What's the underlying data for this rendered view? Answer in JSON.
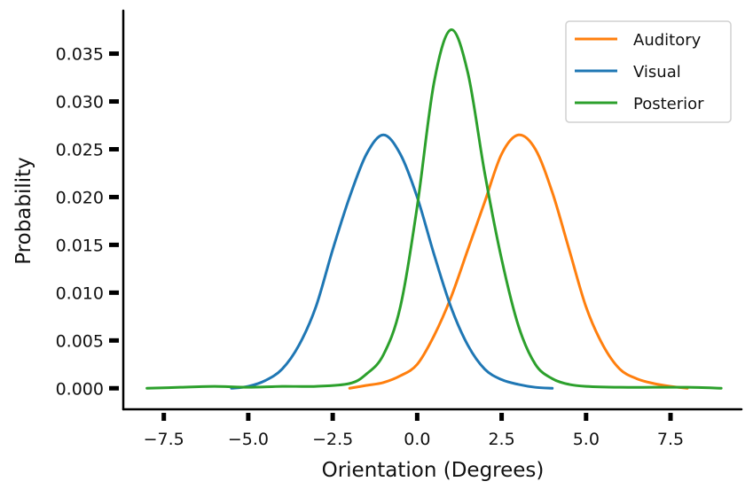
{
  "chart_data": {
    "type": "line",
    "xlabel": "Orientation (Degrees)",
    "ylabel": "Probability",
    "xlim": [
      -8.7,
      9.6
    ],
    "ylim": [
      -0.0022,
      0.0395
    ],
    "xticks": [
      {
        "value": -7.5,
        "label": "−7.5"
      },
      {
        "value": -5.0,
        "label": "−5.0"
      },
      {
        "value": -2.5,
        "label": "−2.5"
      },
      {
        "value": 0.0,
        "label": "0.0"
      },
      {
        "value": 2.5,
        "label": "2.5"
      },
      {
        "value": 5.0,
        "label": "5.0"
      },
      {
        "value": 7.5,
        "label": "7.5"
      }
    ],
    "yticks": [
      {
        "value": 0.0,
        "label": "0.000"
      },
      {
        "value": 0.005,
        "label": "0.005"
      },
      {
        "value": 0.01,
        "label": "0.010"
      },
      {
        "value": 0.015,
        "label": "0.015"
      },
      {
        "value": 0.02,
        "label": "0.020"
      },
      {
        "value": 0.025,
        "label": "0.025"
      },
      {
        "value": 0.03,
        "label": "0.030"
      },
      {
        "value": 0.035,
        "label": "0.035"
      }
    ],
    "grid": false,
    "legend_position": "top-right",
    "series": [
      {
        "name": "Auditory",
        "color": "#ff7f0e",
        "x": [
          -2.0,
          -1.5,
          -1.0,
          -0.5,
          0.0,
          0.5,
          1.0,
          1.5,
          2.0,
          2.5,
          3.0,
          3.5,
          4.0,
          4.5,
          5.0,
          5.5,
          6.0,
          6.5,
          7.0,
          7.5,
          8.0
        ],
        "y": [
          0.0,
          0.0003,
          0.0006,
          0.0013,
          0.0025,
          0.0055,
          0.0095,
          0.0145,
          0.0195,
          0.0245,
          0.0265,
          0.025,
          0.0205,
          0.0145,
          0.0085,
          0.0045,
          0.002,
          0.001,
          0.0005,
          0.0002,
          0.0
        ]
      },
      {
        "name": "Visual",
        "color": "#1f77b4",
        "x": [
          -5.5,
          -5.0,
          -4.5,
          -4.0,
          -3.5,
          -3.0,
          -2.5,
          -2.0,
          -1.5,
          -1.0,
          -0.5,
          0.0,
          0.5,
          1.0,
          1.5,
          2.0,
          2.5,
          3.0,
          3.5,
          4.0
        ],
        "y": [
          0.0,
          0.0002,
          0.0008,
          0.002,
          0.0045,
          0.0085,
          0.0145,
          0.02,
          0.0245,
          0.0265,
          0.0245,
          0.02,
          0.014,
          0.0085,
          0.0045,
          0.002,
          0.0009,
          0.0004,
          0.0001,
          0.0
        ]
      },
      {
        "name": "Posterior",
        "color": "#2ca02c",
        "x": [
          -8.0,
          -7.0,
          -6.0,
          -5.0,
          -4.0,
          -3.0,
          -2.0,
          -1.5,
          -1.0,
          -0.5,
          0.0,
          0.5,
          1.0,
          1.5,
          2.0,
          2.5,
          3.0,
          3.5,
          4.0,
          4.5,
          5.0,
          6.0,
          7.0,
          8.0,
          9.0
        ],
        "y": [
          0.0,
          0.0001,
          0.0002,
          0.0001,
          0.0002,
          0.0002,
          0.0005,
          0.0015,
          0.0035,
          0.0085,
          0.019,
          0.032,
          0.0375,
          0.033,
          0.0225,
          0.0135,
          0.0065,
          0.0025,
          0.001,
          0.0004,
          0.0002,
          0.0001,
          0.0001,
          0.0001,
          0.0
        ]
      }
    ]
  }
}
